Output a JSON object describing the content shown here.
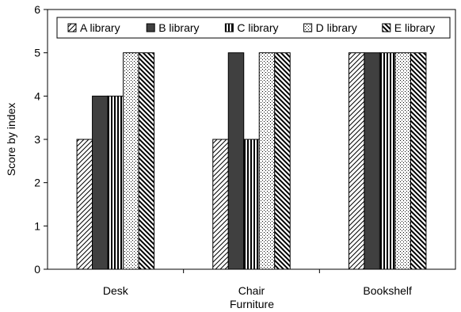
{
  "chart_data": {
    "type": "bar",
    "title": "",
    "xlabel": "Furniture",
    "ylabel": "Score by index",
    "ylim": [
      0,
      6
    ],
    "yticks": [
      0,
      1,
      2,
      3,
      4,
      5,
      6
    ],
    "grid": false,
    "legend_position": "top",
    "categories": [
      "Desk",
      "Chair",
      "Bookshelf"
    ],
    "series": [
      {
        "name": "A library",
        "pattern": "diagonal-right",
        "values": [
          3,
          3,
          5
        ]
      },
      {
        "name": "B library",
        "pattern": "solid-dark",
        "values": [
          4,
          5,
          5
        ]
      },
      {
        "name": "C library",
        "pattern": "vertical-stripes",
        "values": [
          4,
          3,
          5
        ]
      },
      {
        "name": "D library",
        "pattern": "dots",
        "values": [
          5,
          5,
          5
        ]
      },
      {
        "name": "E library",
        "pattern": "diagonal-left-bold",
        "values": [
          5,
          5,
          5
        ]
      }
    ]
  }
}
